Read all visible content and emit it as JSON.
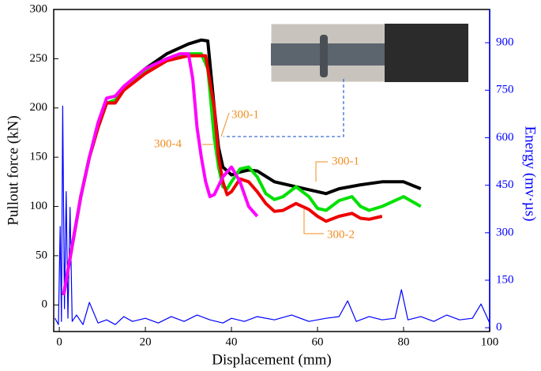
{
  "chart_data": {
    "type": "line",
    "x_label": "Displacement (mm)",
    "y_label": "Pullout force (kN)",
    "y2_label": "Energy (mv·µs)",
    "xlim": [
      -1.3,
      100
    ],
    "xticks": [
      0,
      20,
      40,
      60,
      80,
      100
    ],
    "ylim": [
      -27,
      300
    ],
    "yticks": [
      0,
      50,
      100,
      150,
      200,
      250,
      300
    ],
    "y2lim": [
      -12,
      1005
    ],
    "y2ticks": [
      0,
      150,
      300,
      450,
      600,
      750,
      900
    ],
    "annotations": [
      "300-1",
      "300-4",
      "300-1",
      "300-2"
    ],
    "series": [
      {
        "color": "#0000ff",
        "axis": "y2",
        "x": [
          -1,
          -0.2,
          0.2,
          0.5,
          0.8,
          1.2,
          1.6,
          2.0,
          2.5,
          3,
          4,
          5.5,
          7,
          9,
          11,
          13,
          15,
          17,
          20,
          23,
          26,
          29,
          32,
          35,
          38,
          40,
          43,
          46,
          50,
          54,
          58,
          62,
          65,
          67,
          69,
          72,
          75,
          78,
          79.5,
          81,
          84,
          87,
          90,
          93,
          96,
          98,
          100
        ],
        "values": [
          30,
          10,
          320,
          20,
          700,
          60,
          430,
          30,
          380,
          20,
          40,
          10,
          80,
          15,
          25,
          10,
          35,
          20,
          30,
          15,
          35,
          20,
          40,
          25,
          15,
          30,
          20,
          35,
          25,
          40,
          20,
          30,
          35,
          85,
          20,
          35,
          25,
          30,
          120,
          25,
          35,
          20,
          40,
          25,
          30,
          75,
          15
        ]
      },
      {
        "color": "#000000",
        "x": [
          1,
          3,
          5,
          7,
          9,
          11,
          13,
          15,
          20,
          25,
          30,
          33,
          34.5,
          36,
          37,
          38,
          40,
          42,
          44,
          46,
          50,
          55,
          60,
          62,
          65,
          70,
          75,
          80,
          84
        ],
        "values": [
          10,
          60,
          110,
          150,
          180,
          205,
          207,
          220,
          240,
          255,
          265,
          269,
          268,
          200,
          160,
          140,
          132,
          135,
          137,
          136,
          125,
          120,
          115,
          113,
          118,
          122,
          125,
          125,
          118
        ]
      },
      {
        "color": "#00e000",
        "x": [
          1,
          3,
          5,
          7,
          9,
          11,
          13,
          15,
          20,
          25,
          30,
          33,
          34.5,
          36,
          37,
          38,
          39,
          40,
          42,
          44,
          46,
          48,
          50,
          52,
          55,
          58,
          60,
          62,
          65,
          68,
          70,
          72,
          75,
          80,
          84
        ],
        "values": [
          10,
          60,
          110,
          150,
          180,
          205,
          208,
          220,
          238,
          250,
          255,
          255,
          240,
          170,
          140,
          120,
          118,
          125,
          138,
          140,
          130,
          113,
          107,
          110,
          120,
          110,
          98,
          96,
          106,
          110,
          100,
          96,
          100,
          110,
          100
        ]
      },
      {
        "color": "#ee0000",
        "x": [
          1,
          3,
          5,
          7,
          9,
          11,
          13,
          15,
          20,
          25,
          30,
          34,
          36,
          37,
          38,
          39,
          40,
          42,
          44,
          46,
          48,
          50,
          52,
          55,
          58,
          60,
          62,
          65,
          68,
          70,
          72,
          75
        ],
        "values": [
          10,
          60,
          110,
          150,
          180,
          205,
          205,
          218,
          235,
          248,
          253,
          253,
          200,
          150,
          125,
          112,
          115,
          128,
          125,
          115,
          103,
          95,
          96,
          103,
          97,
          90,
          85,
          90,
          93,
          88,
          87,
          90
        ]
      },
      {
        "color": "#ff00ff",
        "x": [
          1,
          3,
          5,
          7,
          9,
          11,
          13,
          15,
          20,
          25,
          28,
          30,
          31,
          32,
          33,
          34,
          35,
          36,
          38,
          40,
          42,
          44,
          46
        ],
        "values": [
          10,
          60,
          110,
          150,
          185,
          210,
          212,
          222,
          240,
          250,
          255,
          255,
          230,
          180,
          150,
          125,
          110,
          112,
          130,
          140,
          125,
          100,
          90
        ]
      }
    ]
  }
}
